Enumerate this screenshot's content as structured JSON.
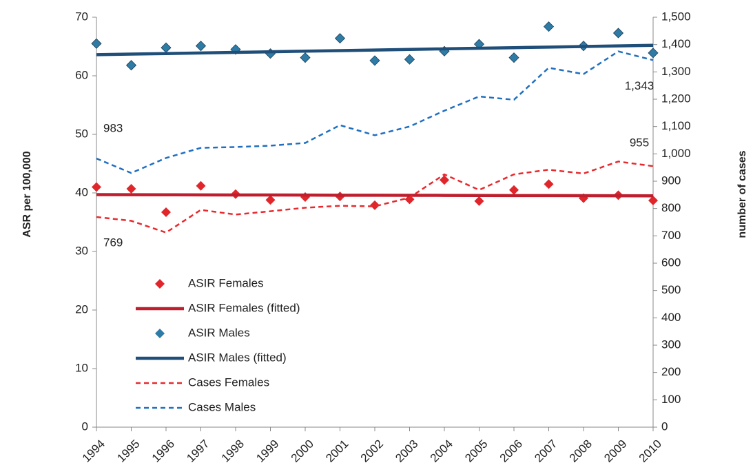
{
  "chart_data": {
    "type": "line",
    "y_label": "ASR per 100,000",
    "y2_label": "number of cases",
    "categories": [
      "1994",
      "1995",
      "1996",
      "1997",
      "1998",
      "1999",
      "2000",
      "2001",
      "2002",
      "2003",
      "2004",
      "2005",
      "2006",
      "2007",
      "2008",
      "2009",
      "2010"
    ],
    "ylim": [
      0,
      70
    ],
    "yticks": [
      0,
      10,
      20,
      30,
      40,
      50,
      60,
      70
    ],
    "y2lim": [
      0,
      1500
    ],
    "y2ticks": [
      0,
      100,
      200,
      300,
      400,
      500,
      600,
      700,
      800,
      900,
      {
        "value": 1000,
        "label": "1,000"
      },
      {
        "value": 1100,
        "label": "1,100"
      },
      {
        "value": 1200,
        "label": "1,200"
      },
      {
        "value": 1300,
        "label": "1,300"
      },
      {
        "value": 1400,
        "label": "1,400"
      },
      {
        "value": 1500,
        "label": "1,500"
      }
    ],
    "grid": false,
    "series": [
      {
        "name": "ASIR Females",
        "type": "scatter",
        "color": "#e0262b",
        "values": [
          41.0,
          40.7,
          36.7,
          41.2,
          39.8,
          38.8,
          39.3,
          39.4,
          37.9,
          38.9,
          42.2,
          38.6,
          40.5,
          41.5,
          39.1,
          39.6,
          38.7
        ]
      },
      {
        "name": "ASIR Females (fitted)",
        "type": "line",
        "color": "#be1e2d",
        "dashed": false,
        "values": [
          39.7,
          39.69,
          39.68,
          39.66,
          39.65,
          39.64,
          39.63,
          39.61,
          39.6,
          39.59,
          39.58,
          39.56,
          39.55,
          39.54,
          39.53,
          39.51,
          39.5
        ]
      },
      {
        "name": "ASIR Males",
        "type": "scatter",
        "color": "#2e7ca6",
        "values": [
          65.5,
          61.8,
          64.8,
          65.1,
          64.5,
          63.8,
          63.1,
          66.4,
          62.6,
          62.8,
          64.2,
          65.4,
          63.1,
          68.4,
          65.1,
          67.3,
          63.9
        ]
      },
      {
        "name": "ASIR Males (fitted)",
        "type": "line",
        "color": "#1f4e79",
        "dashed": false,
        "values": [
          63.6,
          63.7,
          63.8,
          63.9,
          64.0,
          64.1,
          64.2,
          64.3,
          64.4,
          64.5,
          64.6,
          64.7,
          64.8,
          64.9,
          65.0,
          65.1,
          65.2
        ]
      },
      {
        "name": "Cases Females",
        "type": "line",
        "color": "#e8292d",
        "dashed": true,
        "axis": "y2",
        "values": [
          769,
          755,
          712,
          795,
          778,
          790,
          803,
          810,
          808,
          840,
          925,
          868,
          925,
          942,
          928,
          972,
          955
        ],
        "value_labels": [
          "769",
          null,
          null,
          null,
          null,
          null,
          null,
          null,
          null,
          null,
          null,
          null,
          null,
          null,
          null,
          null,
          "955"
        ]
      },
      {
        "name": "Cases Males",
        "type": "line",
        "color": "#1f6fc0",
        "dashed": true,
        "axis": "y2",
        "values": [
          983,
          930,
          985,
          1022,
          1025,
          1030,
          1040,
          1105,
          1068,
          1100,
          1158,
          1210,
          1198,
          1315,
          1292,
          1375,
          1343
        ],
        "value_labels": [
          "983",
          null,
          null,
          null,
          null,
          null,
          null,
          null,
          null,
          null,
          null,
          null,
          null,
          null,
          null,
          null,
          "1,343"
        ]
      }
    ]
  }
}
